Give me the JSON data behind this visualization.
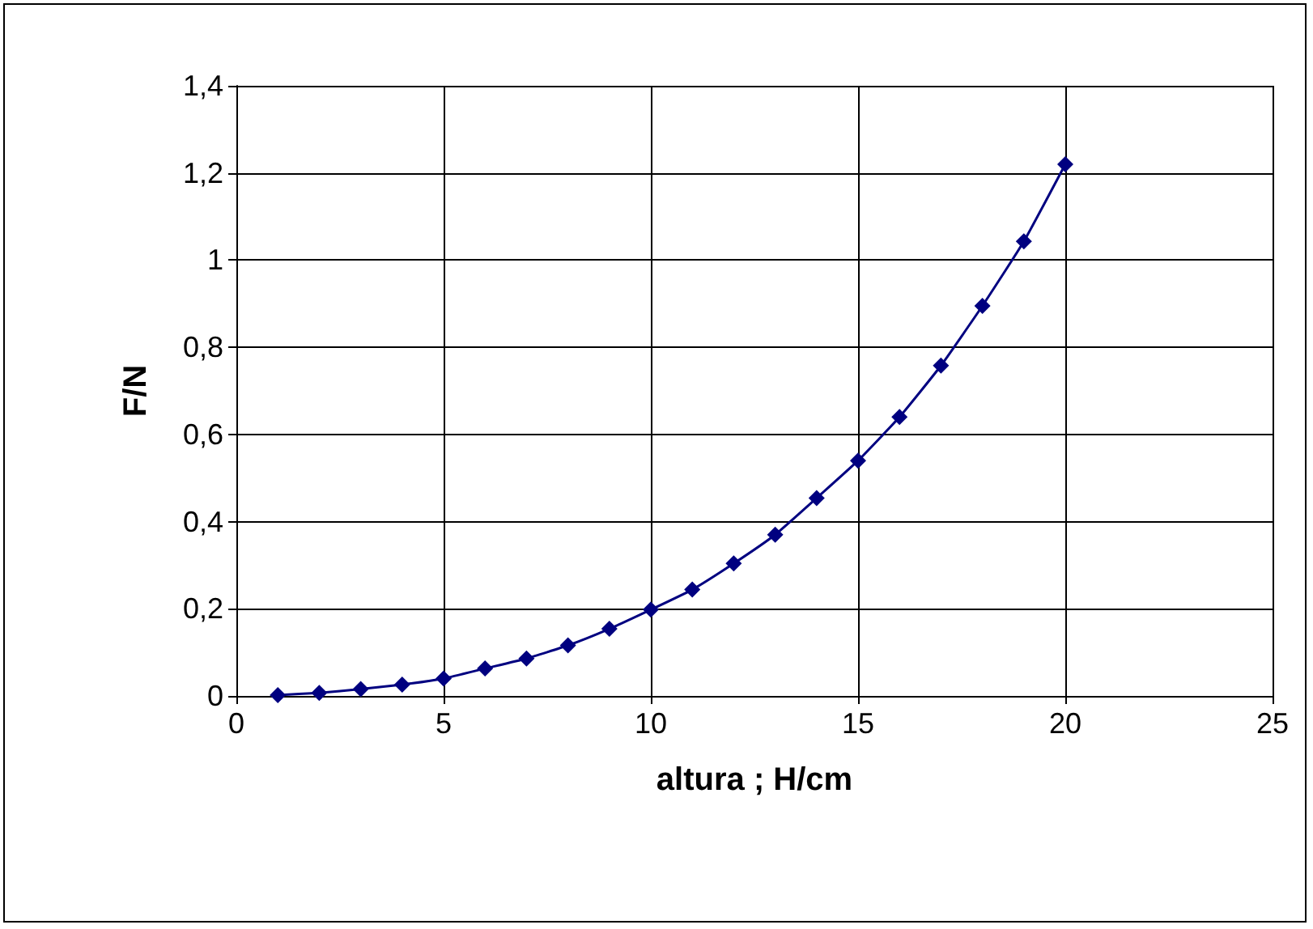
{
  "chart_data": {
    "type": "line",
    "xlabel": "altura ; H/cm",
    "ylabel": "F/N",
    "x": [
      1,
      2,
      3,
      4,
      5,
      6,
      7,
      8,
      9,
      10,
      11,
      12,
      13,
      14,
      15,
      16,
      17,
      18,
      19,
      20
    ],
    "series": [
      {
        "color": "#000080",
        "values": [
          0.002,
          0.007,
          0.016,
          0.026,
          0.04,
          0.063,
          0.086,
          0.116,
          0.154,
          0.198,
          0.244,
          0.304,
          0.37,
          0.454,
          0.54,
          0.64,
          0.758,
          0.895,
          1.043,
          1.22
        ]
      }
    ],
    "xlim": [
      0,
      25
    ],
    "xticks": [
      0,
      5,
      10,
      15,
      20,
      25
    ],
    "ylim": [
      0,
      1.4
    ],
    "yticks": [
      0,
      {
        "value": 0.2,
        "label": "0,2"
      },
      {
        "value": 0.4,
        "label": "0,4"
      },
      {
        "value": 0.6,
        "label": "0,6"
      },
      {
        "value": 0.8,
        "label": "0,8"
      },
      1,
      {
        "value": 1.2,
        "label": "1,2"
      },
      {
        "value": 1.4,
        "label": "1,4"
      }
    ],
    "grid": true,
    "marker": "diamond",
    "line_style": "solid"
  }
}
